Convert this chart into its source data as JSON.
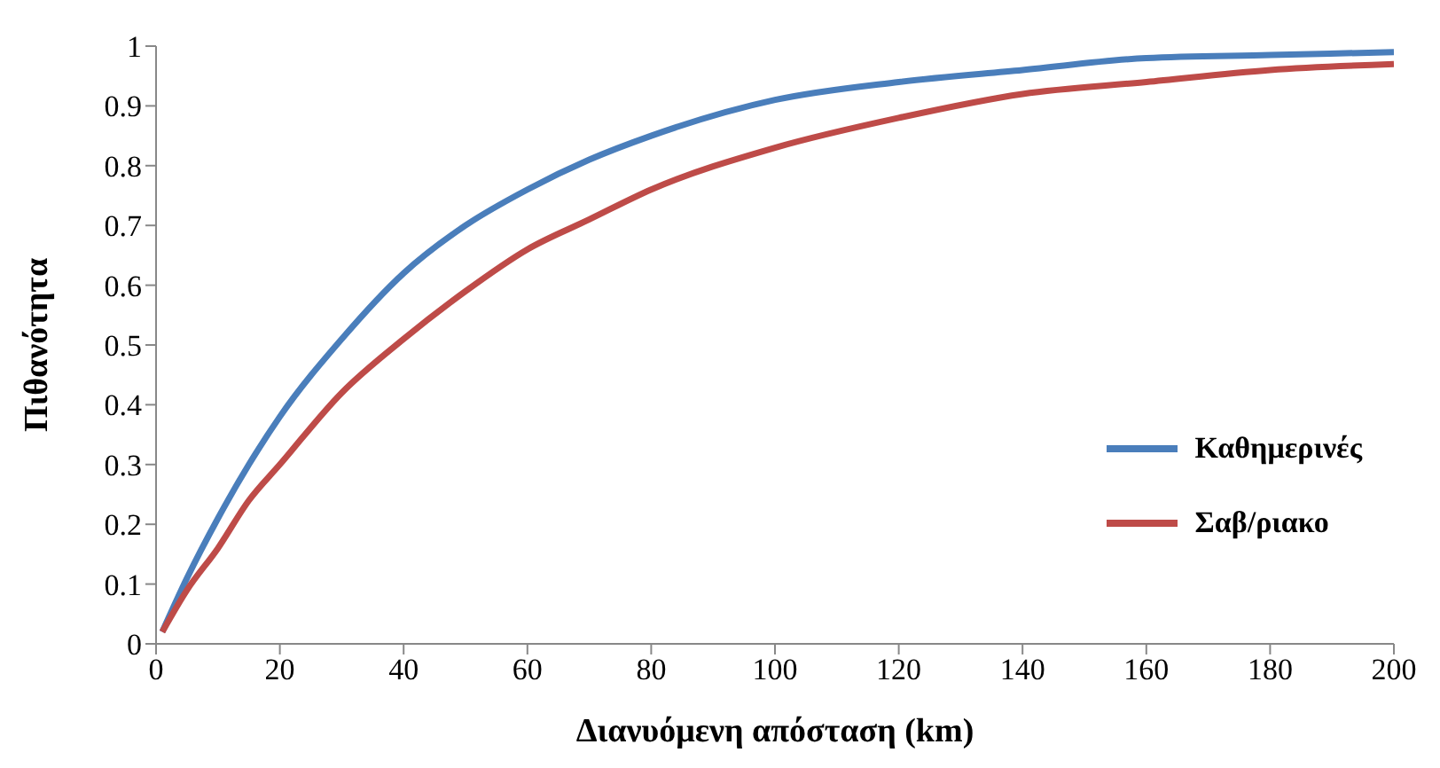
{
  "chart_data": {
    "type": "line",
    "xlabel": "Διανυόμενη απόσταση (km)",
    "ylabel": "Πιθανότητα",
    "x": [
      1,
      5,
      10,
      15,
      20,
      30,
      40,
      50,
      60,
      70,
      80,
      100,
      120,
      140,
      160,
      180,
      200
    ],
    "series": [
      {
        "name": "Καθημερινές",
        "color": "#4a7ebb",
        "values": [
          0.02,
          0.11,
          0.21,
          0.3,
          0.38,
          0.51,
          0.62,
          0.7,
          0.76,
          0.81,
          0.85,
          0.91,
          0.94,
          0.96,
          0.98,
          0.985,
          0.99
        ]
      },
      {
        "name": "Σαβ/ριακο",
        "color": "#be4b48",
        "values": [
          0.02,
          0.09,
          0.16,
          0.24,
          0.3,
          0.42,
          0.51,
          0.59,
          0.66,
          0.71,
          0.76,
          0.83,
          0.88,
          0.92,
          0.94,
          0.96,
          0.97
        ]
      }
    ],
    "xlim": [
      0,
      200
    ],
    "xticks": [
      0,
      20,
      40,
      60,
      80,
      100,
      120,
      140,
      160,
      180,
      200
    ],
    "ylim": [
      0,
      1
    ],
    "yticks": [
      0,
      0.1,
      0.2,
      0.3,
      0.4,
      0.5,
      0.6,
      0.7,
      0.8,
      0.9,
      1
    ],
    "grid": false,
    "legend": "right",
    "marker": "none",
    "line_style": "solid"
  }
}
